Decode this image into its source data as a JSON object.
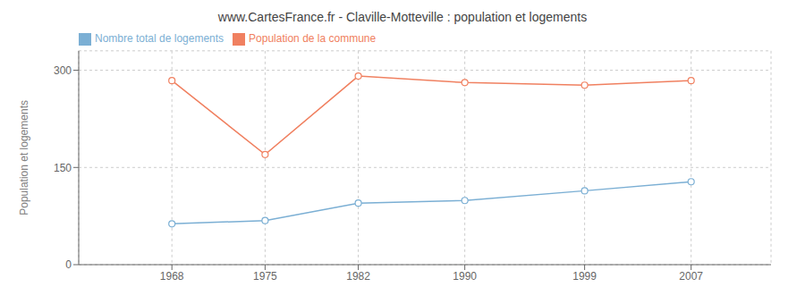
{
  "chart_data": {
    "type": "line",
    "title": "www.CartesFrance.fr - Claville-Motteville : population et logements",
    "y_label": "Population et logements",
    "x": [
      1968,
      1975,
      1982,
      1990,
      1999,
      2007
    ],
    "series": [
      {
        "name": "Nombre total de logements",
        "color": "#7bafd4",
        "values": [
          63,
          68,
          95,
          99,
          114,
          128
        ],
        "marker": "circle"
      },
      {
        "name": "Population de la commune",
        "color": "#f08060",
        "values": [
          284,
          170,
          291,
          281,
          277,
          284
        ],
        "marker": "circle"
      }
    ],
    "xlim": [
      1961,
      2013
    ],
    "xticks": [
      1968,
      1975,
      1982,
      1990,
      1999,
      2007
    ],
    "ylim": [
      0,
      330
    ],
    "yticks": [
      0,
      150,
      300
    ],
    "grid": true,
    "legend": "upper left"
  }
}
